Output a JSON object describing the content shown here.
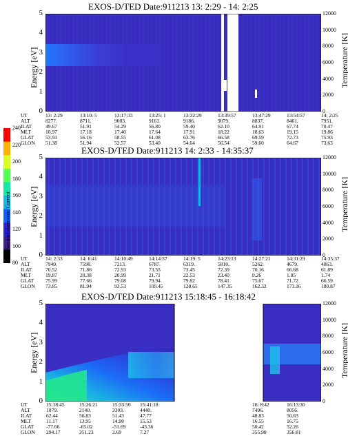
{
  "chart_data": [
    {
      "type": "heatmap",
      "title": "EXOS-D/TED   Date:911213  13: 2:29 - 14: 2:25",
      "ylabel": "Energy [eV]",
      "ylabel_right": "Temperature [K]",
      "ylim": [
        0,
        5
      ],
      "yticks": [
        "0",
        "1",
        "2",
        "3",
        "4",
        "5"
      ],
      "ylim_right": [
        0,
        12000
      ],
      "yticks_right": [
        "0",
        "2000",
        "4000",
        "6000",
        "8000",
        "10000",
        "12000"
      ],
      "table_labels": [
        "UT",
        "ALT",
        "ILAT",
        "MLT",
        "GLAT",
        "GLON"
      ],
      "columns": [
        [
          "13: 2:29",
          "8277.",
          "49.67",
          "16.97",
          "53.93",
          "51.38"
        ],
        [
          "13:10: 5",
          "8711.",
          "51.91",
          "17.18",
          "56.16",
          "51.94"
        ],
        [
          "13:17:33",
          "9003.",
          "54.29",
          "17.40",
          "58.55",
          "52.57"
        ],
        [
          "13:25: 1",
          "9161.",
          "56.80",
          "17.64",
          "61.08",
          "53.40"
        ],
        [
          "13:32:29",
          "9186.",
          "59.40",
          "17.91",
          "63.76",
          "54.64"
        ],
        [
          "13:39:57",
          "9079.",
          "62.10",
          "18.22",
          "66.58",
          "56.54"
        ],
        [
          "13:47:29",
          "8837.",
          "64.91",
          "18.63",
          "69.59",
          "59.60"
        ],
        [
          "13:54:57",
          "8461.",
          "67.74",
          "19.15",
          "72.73",
          "64.67"
        ],
        [
          "14: 2:25",
          "7951.",
          "70.47",
          "19.86",
          "75.93",
          "73.63"
        ]
      ]
    },
    {
      "type": "heatmap",
      "title": "EXOS-D/TED   Date:911213  14: 2:33 - 14:35:37",
      "ylabel": "Energy [eV]",
      "ylabel_right": "Temperature [K]",
      "ylim": [
        0,
        5
      ],
      "yticks": [
        "0",
        "1",
        "2",
        "3",
        "4",
        "5"
      ],
      "ylim_right": [
        0,
        12000
      ],
      "yticks_right": [
        "0",
        "2000",
        "4000",
        "6000",
        "8000",
        "10000",
        "12000"
      ],
      "table_labels": [
        "UT",
        "ALT",
        "ILAT",
        "MLT",
        "GLAT",
        "GLON"
      ],
      "columns": [
        [
          "14: 2:33",
          "7940.",
          "70.52",
          "19.87",
          "75.99",
          "73.85"
        ],
        [
          "14: 6:41",
          "7598.",
          "71.86",
          "20.38",
          "77.66",
          "81.94"
        ],
        [
          "14:10:49",
          "7213.",
          "72.93",
          "20.99",
          "79.08",
          "93.53"
        ],
        [
          "14:14:57",
          "6787.",
          "73.55",
          "21.71",
          "79.94",
          "109.45"
        ],
        [
          "14:19: 5",
          "6319.",
          "73.45",
          "22.53",
          "79.82",
          "128.65"
        ],
        [
          "14:23:13",
          "5810.",
          "72.39",
          "23.40",
          "78.41",
          "147.35"
        ],
        [
          "14:27:21",
          "5262.",
          "70.16",
          "0.26",
          "75.67",
          "162.32"
        ],
        [
          "14:31:29",
          "4679.",
          "66.68",
          "1.05",
          "71.72",
          "173.16"
        ],
        [
          "14:35:37",
          "4063.",
          "61.89",
          "1.74",
          "66.59",
          "180.87"
        ]
      ]
    },
    {
      "type": "heatmap",
      "title": "EXOS-D/TED   Date:911213  15:18:45 - 16:18:42",
      "ylabel": "Energy [eV]",
      "ylabel_right": "Temperature [K]",
      "ylim": [
        0,
        5
      ],
      "yticks": [
        "0",
        "1",
        "2",
        "3",
        "4",
        "5"
      ],
      "ylim_right": [
        0,
        12000
      ],
      "yticks_right": [
        "0",
        "2000",
        "4000",
        "6000",
        "8000",
        "10000",
        "12000"
      ],
      "table_labels": [
        "UT",
        "ALT",
        "ILAT",
        "MLT",
        "GLAT",
        "GLON"
      ],
      "columns": [
        [
          "15:18:45",
          "1079.",
          "62.44",
          "11.17",
          "-77.66",
          "294.17"
        ],
        [
          "15:26:21",
          "2140.",
          "56.83",
          "13.95",
          "-65.02",
          "351.23"
        ],
        [
          "15:33:50",
          "3303.",
          "51.43",
          "14.98",
          "-51.69",
          "2.69"
        ],
        [
          "15:41:18",
          "4440.",
          "47.77",
          "15.53",
          "-43.36",
          "7.27"
        ],
        [
          "16: 8:42",
          "7496.",
          "48.83",
          "16.55",
          "50.42",
          "355.98"
        ],
        [
          "16:13:30",
          "8056.",
          "50.63",
          "16.75",
          "52.26",
          "356.81"
        ]
      ]
    }
  ],
  "colorbar": {
    "label": "Second Harmonic Current",
    "ticks": [
      "80",
      "100",
      "120",
      "140",
      "160",
      "180",
      "200",
      "220",
      "240"
    ],
    "colors": [
      "#000000",
      "#3b1d8c",
      "#2b1fd0",
      "#1560ff",
      "#17b6ea",
      "#15e7a5",
      "#52ff52",
      "#d8ff20",
      "#ffb000",
      "#ff0000"
    ]
  }
}
